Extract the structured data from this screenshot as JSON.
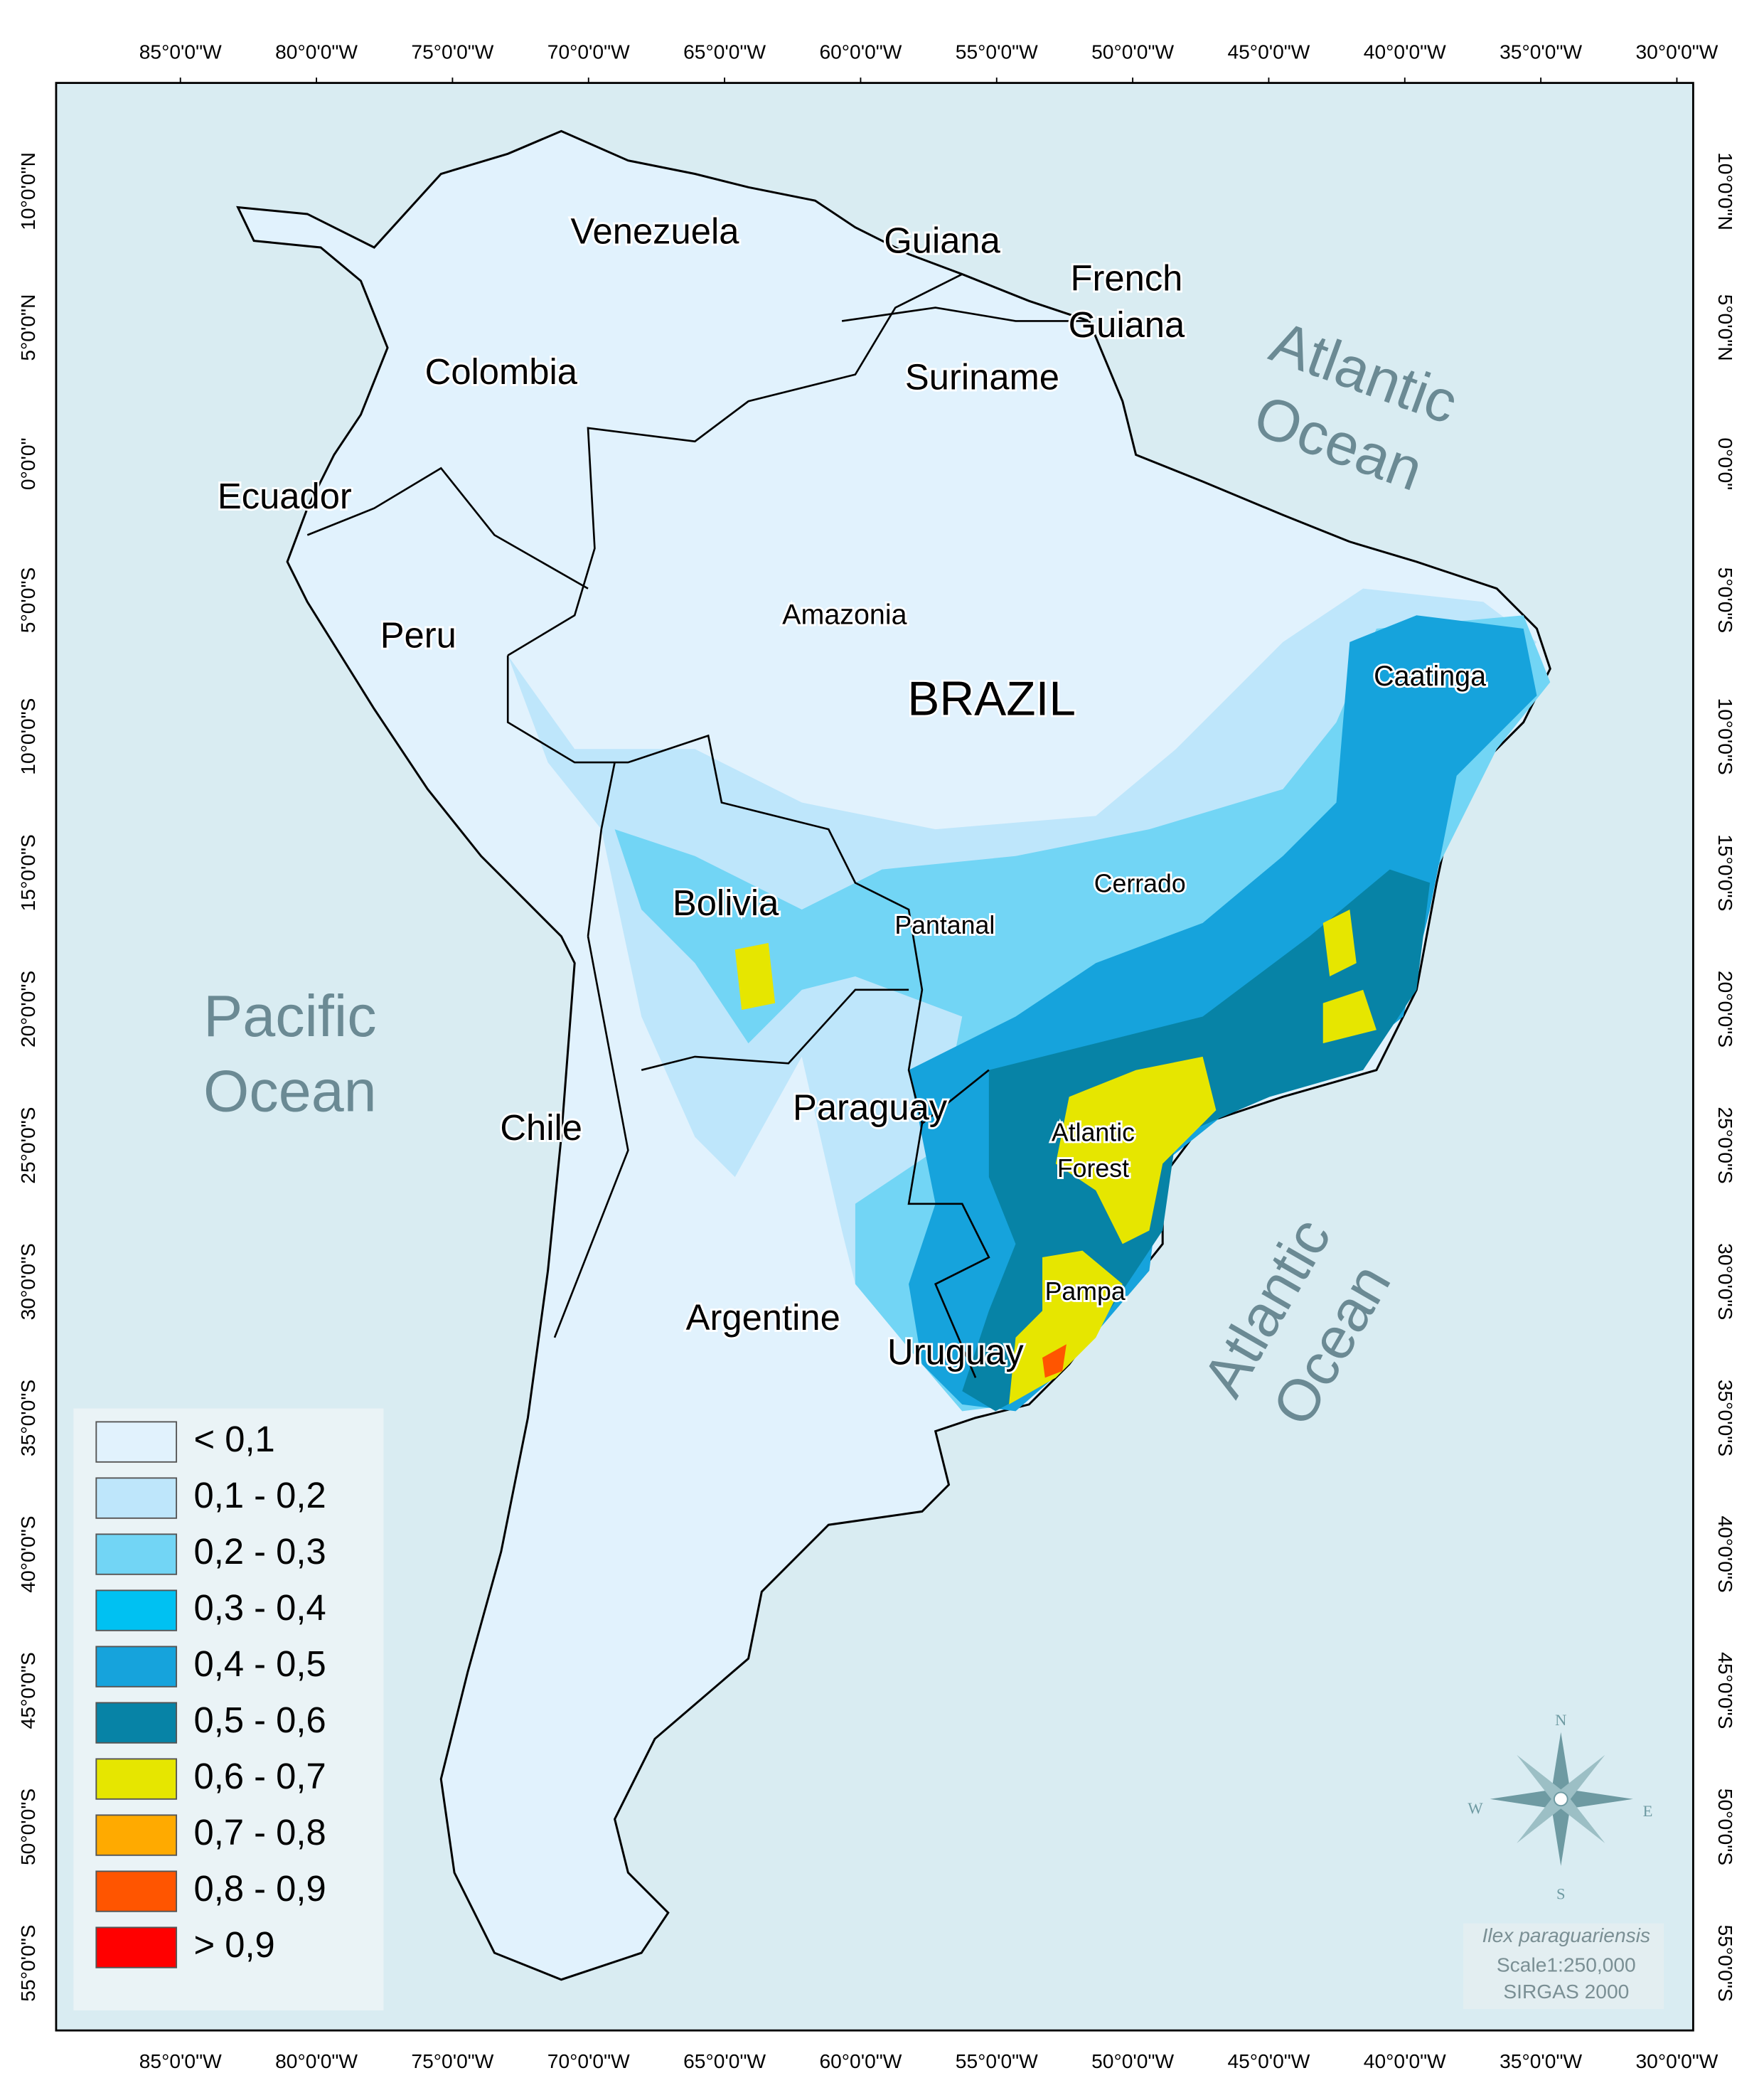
{
  "map": {
    "longitude_labels": [
      "85°0'0\"W",
      "80°0'0\"W",
      "75°0'0\"W",
      "70°0'0\"W",
      "65°0'0\"W",
      "60°0'0\"W",
      "55°0'0\"W",
      "50°0'0\"W",
      "45°0'0\"W",
      "40°0'0\"W",
      "35°0'0\"W",
      "30°0'0\"W"
    ],
    "latitude_labels": [
      "10°0'0\"N",
      "5°0'0\"N",
      "0°0'0\"",
      "5°0'0\"S",
      "10°0'0\"S",
      "15°0'0\"S",
      "20°0'0\"S",
      "25°0'0\"S",
      "30°0'0\"S",
      "35°0'0\"S",
      "40°0'0\"S",
      "45°0'0\"S",
      "50°0'0\"S",
      "55°0'0\"S"
    ],
    "place_labels": [
      "Venezuela",
      "Guiana",
      "French",
      "Guiana",
      "Suriname",
      "Colombia",
      "Ecuador",
      "Peru",
      "Amazonia",
      "BRAZIL",
      "Caatinga",
      "Cerrado",
      "Bolivia",
      "Pantanal",
      "Paraguay",
      "Chile",
      "Atlantic",
      "Forest",
      "Argentine",
      "Pampa",
      "Uruguay"
    ],
    "ocean_labels": [
      [
        "Pacific",
        "Ocean"
      ],
      [
        "Atlantic",
        "Ocean"
      ],
      [
        "Atlantic",
        "Ocean"
      ]
    ],
    "legend": [
      {
        "label": "< 0,1",
        "color": "#e1f2fd"
      },
      {
        "label": "0,1 - 0,2",
        "color": "#bee6fb"
      },
      {
        "label": "0,2 - 0,3",
        "color": "#72d5f5"
      },
      {
        "label": "0,3 - 0,4",
        "color": "#00c1f2"
      },
      {
        "label": "0,4 - 0,5",
        "color": "#16a3dc"
      },
      {
        "label": "0,5 - 0,6",
        "color": "#0783a6"
      },
      {
        "label": "0,6 - 0,7",
        "color": "#e6e600"
      },
      {
        "label": "0,7 - 0,8",
        "color": "#ffaa00"
      },
      {
        "label": "0,8 - 0,9",
        "color": "#ff5500"
      },
      {
        "label": "> 0,9",
        "color": "#ff0000"
      }
    ],
    "compass": {
      "north": "N",
      "south": "S",
      "east": "E",
      "west": "W"
    },
    "info": {
      "species": "Ilex paraguariensis",
      "scale": "Scale1:250,000",
      "datum": "SIRGAS 2000"
    }
  }
}
